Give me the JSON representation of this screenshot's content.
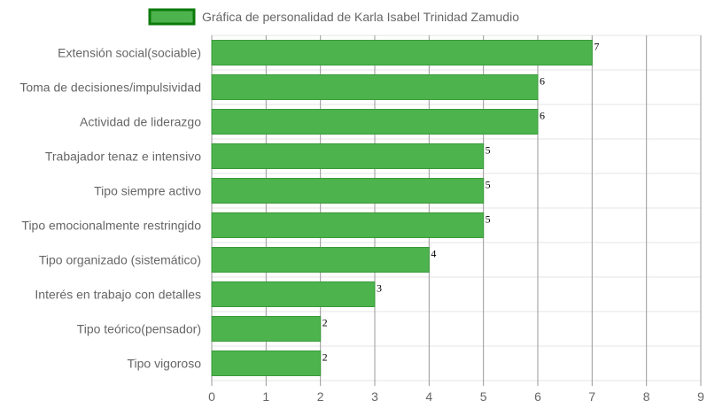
{
  "chart_data": {
    "type": "bar",
    "orientation": "horizontal",
    "categories": [
      "Extensión social(sociable)",
      "Toma de decisiones/impulsividad",
      "Actividad de liderazgo",
      "Trabajador tenaz e intensivo",
      "Tipo siempre activo",
      "Tipo emocionalmente restringido",
      "Tipo organizado (sistemático)",
      "Interés en trabajo con detalles",
      "Tipo teórico(pensador)",
      "Tipo vigoroso"
    ],
    "series": [
      {
        "name": "Gráfica de personalidad de Karla Isabel Trinidad Zamudio",
        "values": [
          7,
          6,
          6,
          5,
          5,
          5,
          4,
          3,
          2,
          2
        ]
      }
    ],
    "xlim": [
      0,
      9
    ],
    "x_ticks": [
      0,
      1,
      2,
      3,
      4,
      5,
      6,
      7,
      8,
      9
    ],
    "grid": true,
    "legend_position": "top-center",
    "data_labels": true
  },
  "colors": {
    "bar_fill": "#4db34d",
    "bar_border": "#3a9a3a",
    "legend_fill": "#4db34d",
    "legend_border": "#0b7a0b",
    "grid_minor": "#e6e6e6",
    "grid_major": "#999999",
    "text": "#666666"
  }
}
